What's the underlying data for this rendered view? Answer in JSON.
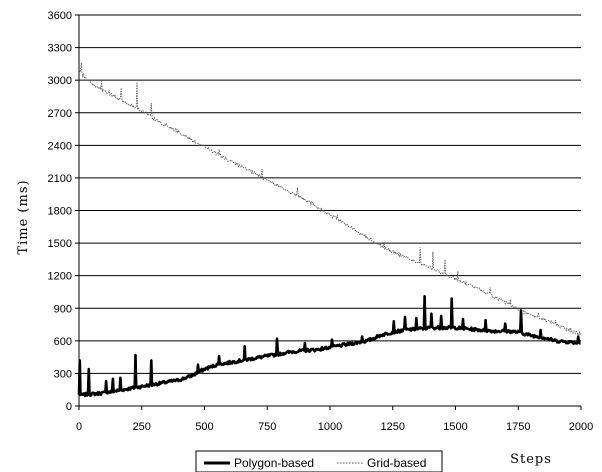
{
  "chart_data": {
    "type": "line",
    "title": "",
    "xlabel": "Steps",
    "ylabel": "Time (ms)",
    "xlim": [
      0,
      2000
    ],
    "ylim": [
      0,
      3600
    ],
    "x_ticks": [
      "0",
      "250",
      "500",
      "750",
      "1000",
      "1250",
      "1500",
      "1750",
      "2000"
    ],
    "y_ticks": [
      "0",
      "300",
      "600",
      "900",
      "1200",
      "1500",
      "1800",
      "2100",
      "2400",
      "2700",
      "3000",
      "3300",
      "3600"
    ],
    "grid": "horizontal",
    "legend_position": "bottom",
    "series": [
      {
        "name": "Polygon-based",
        "color": "#000000",
        "style": "solid-thick",
        "x": [
          0,
          50,
          100,
          150,
          200,
          250,
          300,
          350,
          400,
          450,
          500,
          550,
          600,
          650,
          700,
          750,
          800,
          850,
          900,
          950,
          1000,
          1050,
          1100,
          1150,
          1200,
          1250,
          1300,
          1350,
          1400,
          1450,
          1500,
          1550,
          1600,
          1650,
          1700,
          1750,
          1800,
          1850,
          1900,
          1950,
          2000
        ],
        "y": [
          100,
          110,
          120,
          140,
          160,
          180,
          200,
          220,
          240,
          280,
          340,
          380,
          400,
          420,
          440,
          460,
          480,
          500,
          510,
          520,
          540,
          560,
          580,
          600,
          650,
          680,
          700,
          710,
          720,
          720,
          720,
          710,
          700,
          690,
          690,
          680,
          650,
          630,
          600,
          590,
          580
        ],
        "spikes": [
          [
            4,
            420
          ],
          [
            40,
            340
          ],
          [
            110,
            230
          ],
          [
            135,
            250
          ],
          [
            165,
            260
          ],
          [
            225,
            470
          ],
          [
            290,
            420
          ],
          [
            475,
            380
          ],
          [
            560,
            460
          ],
          [
            660,
            550
          ],
          [
            790,
            620
          ],
          [
            900,
            580
          ],
          [
            1010,
            610
          ],
          [
            1130,
            640
          ],
          [
            1255,
            780
          ],
          [
            1300,
            820
          ],
          [
            1345,
            810
          ],
          [
            1378,
            1010
          ],
          [
            1405,
            850
          ],
          [
            1445,
            830
          ],
          [
            1485,
            990
          ],
          [
            1530,
            800
          ],
          [
            1620,
            790
          ],
          [
            1700,
            760
          ],
          [
            1762,
            880
          ],
          [
            1840,
            700
          ],
          [
            1990,
            640
          ]
        ]
      },
      {
        "name": "Grid-based",
        "color": "#555555",
        "style": "dotted-thin",
        "x": [
          0,
          50,
          100,
          150,
          200,
          250,
          300,
          350,
          400,
          450,
          500,
          550,
          600,
          650,
          700,
          750,
          800,
          850,
          900,
          950,
          1000,
          1050,
          1100,
          1150,
          1200,
          1250,
          1300,
          1350,
          1400,
          1450,
          1500,
          1550,
          1600,
          1650,
          1700,
          1750,
          1800,
          1850,
          1900,
          1950,
          2000
        ],
        "y": [
          3080,
          2970,
          2900,
          2840,
          2780,
          2720,
          2640,
          2580,
          2520,
          2450,
          2390,
          2320,
          2260,
          2200,
          2140,
          2080,
          2020,
          1960,
          1900,
          1830,
          1760,
          1690,
          1620,
          1550,
          1480,
          1420,
          1370,
          1320,
          1270,
          1220,
          1170,
          1120,
          1070,
          1010,
          950,
          890,
          840,
          800,
          750,
          700,
          660
        ],
        "spikes": [
          [
            10,
            3160
          ],
          [
            90,
            2990
          ],
          [
            120,
            2910
          ],
          [
            170,
            2930
          ],
          [
            232,
            2980
          ],
          [
            290,
            2790
          ],
          [
            420,
            2480
          ],
          [
            560,
            2360
          ],
          [
            730,
            2180
          ],
          [
            870,
            2010
          ],
          [
            1030,
            1760
          ],
          [
            1170,
            1510
          ],
          [
            1215,
            1510
          ],
          [
            1360,
            1460
          ],
          [
            1410,
            1420
          ],
          [
            1460,
            1350
          ],
          [
            1510,
            1240
          ],
          [
            1640,
            1090
          ],
          [
            1720,
            980
          ],
          [
            1830,
            860
          ],
          [
            1900,
            790
          ],
          [
            1960,
            720
          ],
          [
            1995,
            680
          ]
        ]
      }
    ]
  }
}
